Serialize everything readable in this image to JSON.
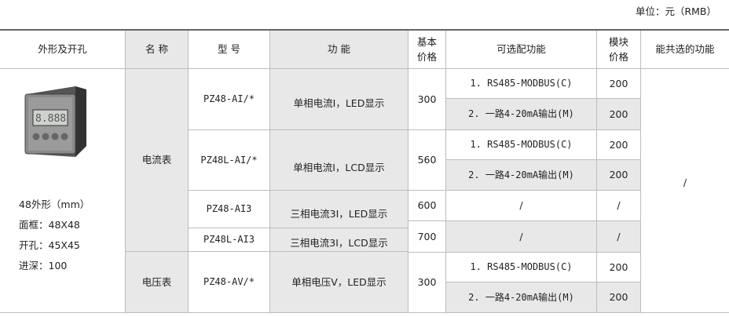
{
  "unit_label": "单位：元（RMB）",
  "headers": {
    "shape": "外形及开孔",
    "name": "名 称",
    "model": "型  号",
    "function": "功  能",
    "base_price": "基本价格",
    "optional": "可选配功能",
    "module_price": "模块价格",
    "combinable": "能共选的功能"
  },
  "spec": {
    "lines": [
      "48外形（mm）",
      "面框：48X48",
      "开孔：45X45",
      "进深：100"
    ]
  },
  "groups": [
    {
      "name": "电流表"
    },
    {
      "name": "电压表"
    }
  ],
  "products": [
    {
      "model": "PZ48-AI/*",
      "function": "单相电流I，LED显示",
      "base_price": "300",
      "options": [
        {
          "label": "1. RS485-MODBUS(C)",
          "price": "200"
        },
        {
          "label": "2. 一路4-20mA输出(M)",
          "price": "200"
        }
      ]
    },
    {
      "model": "PZ48L-AI/*",
      "function": "单相电流I，LCD显示",
      "base_price": "560",
      "options": [
        {
          "label": "1. RS485-MODBUS(C)",
          "price": "200"
        },
        {
          "label": "2. 一路4-20mA输出(M)",
          "price": "200"
        }
      ]
    },
    {
      "model": "PZ48-AI3",
      "function": "三相电流3I，LED显示",
      "base_price": "600",
      "options": [
        {
          "label": "/",
          "price": "/"
        }
      ]
    },
    {
      "model": "PZ48L-AI3",
      "function": "三相电流3I，LCD显示",
      "base_price": "700",
      "options": [
        {
          "label": "/",
          "price": "/"
        }
      ]
    },
    {
      "model": "PZ48-AV/*",
      "function": "单相电压V，LED显示",
      "base_price": "300",
      "options": [
        {
          "label": "1. RS485-MODBUS(C)",
          "price": "200"
        },
        {
          "label": "2. 一路4-20mA输出(M)",
          "price": "200"
        }
      ]
    }
  ],
  "combinable_value": "/"
}
